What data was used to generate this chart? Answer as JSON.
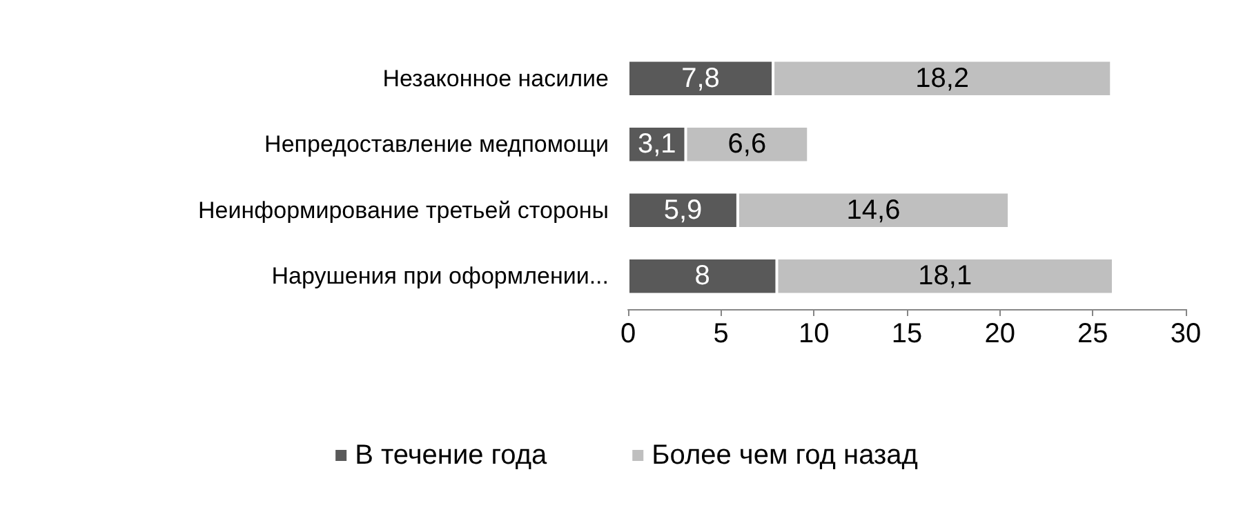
{
  "chart_data": {
    "type": "bar",
    "orientation": "horizontal",
    "stacked": true,
    "categories": [
      "Незаконное насилие",
      "Непредоставление медпомощи",
      "Неинформирование третьей стороны",
      "Нарушения при оформлении..."
    ],
    "series": [
      {
        "name": "В течение года",
        "color": "#595959",
        "values": [
          7.8,
          3.1,
          5.9,
          8
        ],
        "value_labels": [
          "7,8",
          "3,1",
          "5,9",
          "8"
        ]
      },
      {
        "name": "Более чем год назад",
        "color": "#bfbfbf",
        "values": [
          18.2,
          6.6,
          14.6,
          18.1
        ],
        "value_labels": [
          "18,2",
          "6,6",
          "14,6",
          "18,1"
        ]
      }
    ],
    "xlim": [
      0,
      30
    ],
    "xticks": [
      0,
      5,
      10,
      15,
      20,
      25,
      30
    ],
    "legend": "bottom"
  }
}
